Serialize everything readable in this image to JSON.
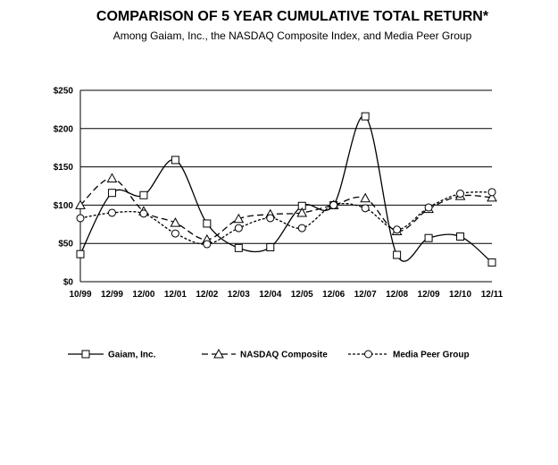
{
  "header": {
    "title": "COMPARISON OF 5 YEAR CUMULATIVE TOTAL RETURN*",
    "subtitle": "Among Gaiam, Inc., the NASDAQ Composite Index, and Media Peer Group"
  },
  "chart_data": {
    "type": "line",
    "title": "COMPARISON OF 5 YEAR CUMULATIVE TOTAL RETURN*",
    "subtitle": "Among Gaiam, Inc., the NASDAQ Composite Index, and Media Peer Group",
    "xlabel": "",
    "ylabel": "",
    "ylim": [
      0,
      250
    ],
    "yticks": [
      0,
      50,
      100,
      150,
      200,
      250
    ],
    "ytick_labels": [
      "$0",
      "$50",
      "$100",
      "$150",
      "$200",
      "$250"
    ],
    "grid": true,
    "legend_position": "bottom",
    "categories": [
      "10/99",
      "12/99",
      "12/00",
      "12/01",
      "12/02",
      "12/03",
      "12/04",
      "12/05",
      "12/06",
      "12/07",
      "12/08",
      "12/09",
      "12/10",
      "12/11"
    ],
    "series": [
      {
        "name": "Gaiam, Inc.",
        "marker": "square",
        "dash": "solid",
        "values": [
          36,
          116,
          113,
          159,
          76,
          44,
          45,
          99,
          100,
          216,
          35,
          57,
          59,
          25
        ]
      },
      {
        "name": "NASDAQ Composite",
        "marker": "triangle",
        "dash": "long-dash",
        "values": [
          100,
          135,
          92,
          77,
          55,
          82,
          88,
          90,
          100,
          109,
          66,
          95,
          112,
          110
        ]
      },
      {
        "name": "Media Peer Group",
        "marker": "circle",
        "dash": "short-dash",
        "values": [
          83,
          90,
          89,
          63,
          49,
          70,
          83,
          70,
          100,
          96,
          68,
          97,
          115,
          117
        ]
      }
    ]
  }
}
